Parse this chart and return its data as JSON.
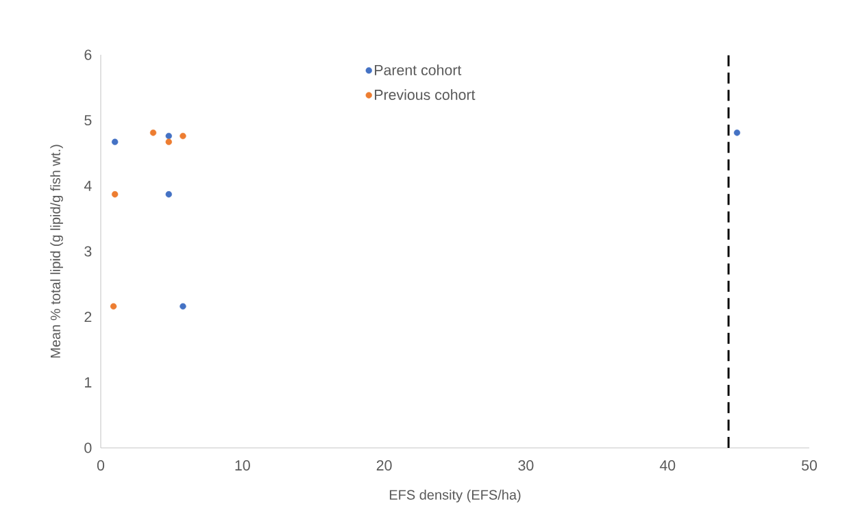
{
  "chart_data": {
    "type": "scatter",
    "xlabel": "EFS density (EFS/ha)",
    "ylabel": "Mean % total lipid (g lipid/g fish wt.)",
    "series": [
      {
        "name": "Parent cohort",
        "color": "#4472c4",
        "x": [
          1.0,
          4.8,
          4.8,
          5.8,
          44.9
        ],
        "values": [
          4.67,
          4.76,
          3.87,
          2.16,
          4.81
        ]
      },
      {
        "name": "Previous cohort",
        "color": "#ed7d31",
        "x": [
          3.7,
          4.8,
          5.8,
          1.0,
          0.9
        ],
        "values": [
          4.81,
          4.67,
          4.76,
          3.87,
          2.16
        ]
      }
    ],
    "xlim": [
      0,
      50
    ],
    "xticks": [
      0,
      10,
      20,
      30,
      40,
      50
    ],
    "ylim": [
      0,
      6
    ],
    "yticks": [
      0,
      1,
      2,
      3,
      4,
      5,
      6
    ],
    "marker": "circle",
    "legend": "top",
    "ref_lines": [
      {
        "axis": "x",
        "value": 44.3,
        "color": "#000000",
        "line_style": "dashed"
      }
    ]
  }
}
